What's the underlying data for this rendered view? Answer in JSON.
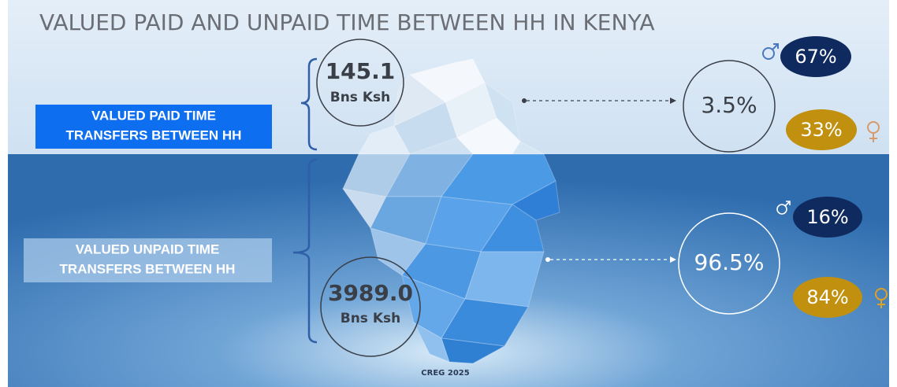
{
  "title": "VALUED PAID AND UNPAID TIME BETWEEN HH IN KENYA",
  "paid": {
    "label_lines": [
      "VALUED PAID TIME",
      "TRANSFERS BETWEEN HH"
    ],
    "amount": "145.1",
    "unit": "Bns Ksh",
    "share": "3.5%",
    "male": "67%",
    "female": "33%"
  },
  "unpaid": {
    "label_lines": [
      "VALUED UNPAID TIME",
      "TRANSFERS BETWEEN HH"
    ],
    "amount": "3989.0",
    "unit": "Bns Ksh",
    "share": "96.5%",
    "male": "16%",
    "female": "84%"
  },
  "footer": "CREG 2025"
}
